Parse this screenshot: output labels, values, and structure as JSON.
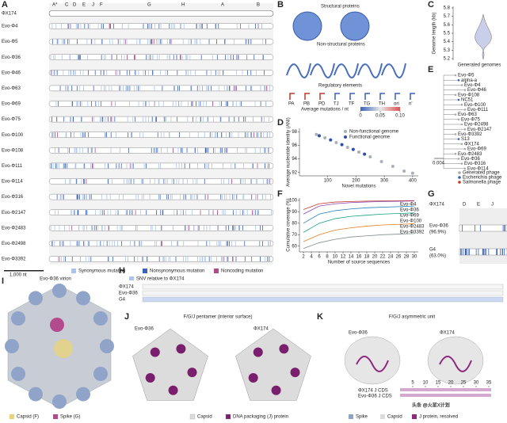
{
  "panel_a": {
    "letter": "A",
    "reference": "ΦX174",
    "genes": [
      "A*",
      "C",
      "D",
      "E",
      "J",
      "F",
      "G",
      "H",
      "A",
      "B"
    ],
    "rows": [
      "Evo-Φ4",
      "Evo-Φ5",
      "Evo-Φ36",
      "Evo-Φ46",
      "Evo-Φ63",
      "Evo-Φ69",
      "Evo-Φ75",
      "Evo-Φ100",
      "Evo-Φ108",
      "Evo-Φ111",
      "Evo-Φ114",
      "Evo-Φ316",
      "Evo-Φ2147",
      "Evo-Φ2483",
      "Evo-Φ2498",
      "Evo-Φ3392"
    ],
    "scale": "1,000 nt",
    "legend": [
      "Synonymous mutation",
      "Nonsynonymous mutation",
      "Noncoding mutation"
    ]
  },
  "panel_b": {
    "letter": "B",
    "headers": [
      "Structural proteins",
      "Non-structural proteins",
      "Regulatory elements"
    ],
    "elements": [
      "PA",
      "PB",
      "PD",
      "TJ",
      "TF",
      "TG",
      "TH",
      "ori",
      "n'"
    ],
    "legend_title": "Average mutations / nt",
    "ticks": [
      0,
      0.05,
      {
        "value": 0.1,
        "label": "0.10"
      }
    ]
  },
  "panel_c": {
    "letter": "C",
    "ylabel": "Genome length (kb)",
    "xlabel": "Generated genomes",
    "yticks": [
      5.2,
      5.3,
      5.4,
      5.5,
      5.6,
      5.7,
      5.8
    ]
  },
  "panel_d": {
    "letter": "D",
    "ylabel": "Average nucleotide identity (ANI)",
    "xlabel": "Novel mutations",
    "xlim": [
      0,
      420
    ],
    "ylim": [
      91.5,
      98.5
    ],
    "xticks": [
      100,
      200,
      300,
      400
    ],
    "yticks": [
      92,
      94,
      96,
      98
    ],
    "series": [
      {
        "name": "Non-functional genome",
        "color": "#aab0b8",
        "x": [
          60,
          90,
          130,
          170,
          210,
          250,
          290,
          330,
          370,
          400
        ],
        "y": [
          97.6,
          97.1,
          96.4,
          95.7,
          95.0,
          94.3,
          93.6,
          92.9,
          92.2,
          91.9
        ]
      },
      {
        "name": "Functional genome",
        "color": "#2b4fa8",
        "x": [
          70,
          110,
          150,
          190,
          230
        ],
        "y": [
          97.4,
          96.8,
          96.1,
          95.4,
          94.7
        ]
      }
    ]
  },
  "panel_e": {
    "letter": "E",
    "leaves": [
      "Evo-Φ5",
      "alpha-a",
      "Evo-Φ4",
      "Evo-Φ46",
      "Evo-Φ108",
      "NC51",
      "Evo-Φ100",
      "Evo-Φ111",
      "Evo-Φ63",
      "Evo-Φ75",
      "Evo-Φ2498",
      "Evo-Φ2147",
      "Evo-Φ3392",
      "S13",
      "ΦX174",
      "Evo-Φ69",
      "Evo-Φ2483",
      "Evo-Φ36",
      "Evo-Φ316",
      "Evo-Φ114"
    ],
    "scale": "0.004",
    "legend": [
      "Generated phage",
      "Escherichia phage",
      "Salmonella phage"
    ]
  },
  "panel_f": {
    "letter": "F",
    "ylabel": "Cumulative coverage (%)",
    "xlabel": "Number of source sequences",
    "xlim": [
      1,
      31
    ],
    "ylim": [
      55,
      102
    ],
    "xticks": [
      2,
      4,
      6,
      8,
      10,
      12,
      14,
      16,
      18,
      20,
      22,
      24,
      26,
      28,
      30
    ],
    "yticks": [
      60,
      70,
      80,
      90,
      100
    ],
    "x": [
      2,
      6,
      10,
      14,
      18,
      22,
      26,
      30
    ],
    "series": [
      {
        "name": "Evo-Φ4",
        "color": "#c0392b",
        "values": [
          92,
          97,
          98.5,
          99,
          99.3,
          99.5,
          99.6,
          99.7
        ]
      },
      {
        "name": "Evo-Φ36",
        "color": "#8e44ad",
        "values": [
          88,
          95,
          97,
          98,
          98.6,
          99,
          99.2,
          99.4
        ]
      },
      {
        "name": "Evo-Φ69",
        "color": "#2980b9",
        "values": [
          80,
          88,
          91,
          92.5,
          93.5,
          94,
          94.5,
          95
        ]
      },
      {
        "name": "Evo-Φ100",
        "color": "#16a085",
        "values": [
          72,
          80,
          84,
          86,
          87,
          88,
          88.5,
          89
        ]
      },
      {
        "name": "Evo-Φ2483",
        "color": "#e67e22",
        "values": [
          64,
          70,
          74,
          76,
          77.5,
          78.5,
          79,
          79.5
        ]
      },
      {
        "name": "Evo-Φ3392",
        "color": "#7f8c8d",
        "values": [
          58,
          63,
          66,
          68,
          69,
          70,
          70.5,
          71
        ]
      }
    ]
  },
  "panel_g": {
    "letter": "G",
    "rows": [
      "ΦX174",
      "Evo-Φ36",
      "(96.9%)",
      "G4",
      "(63.0%)"
    ],
    "genes": [
      "D",
      "E",
      "J"
    ]
  },
  "panel_h": {
    "letter": "H",
    "legend": "SNV relative to ΦX174",
    "rows": [
      "ΦX174",
      "Evo-Φ36",
      "G4"
    ]
  },
  "panel_i": {
    "letter": "I",
    "title": "Evo-Φ36 virion",
    "legend": [
      "Capsid (F)",
      "Spike (G)"
    ]
  },
  "panel_j": {
    "letter": "J",
    "title": "F/G/J pentamer (interior surface)",
    "left": "Evo-Φ36",
    "right": "ΦX174",
    "legend": [
      "Capsid",
      "DNA packaging (J) protein"
    ]
  },
  "panel_k": {
    "letter": "K",
    "title": "F/G/J asymmetric unit",
    "left": "Evo-Φ36",
    "right": "ΦX174",
    "cds": [
      "ΦX174 J CDS",
      "Evo-Φ36 J CDS"
    ],
    "ticks": [
      5,
      10,
      15,
      20,
      25,
      30,
      35
    ],
    "legend": [
      "Spike",
      "Capsid",
      "J protein, resolved"
    ]
  },
  "watermark": "头条 @火星X计划"
}
